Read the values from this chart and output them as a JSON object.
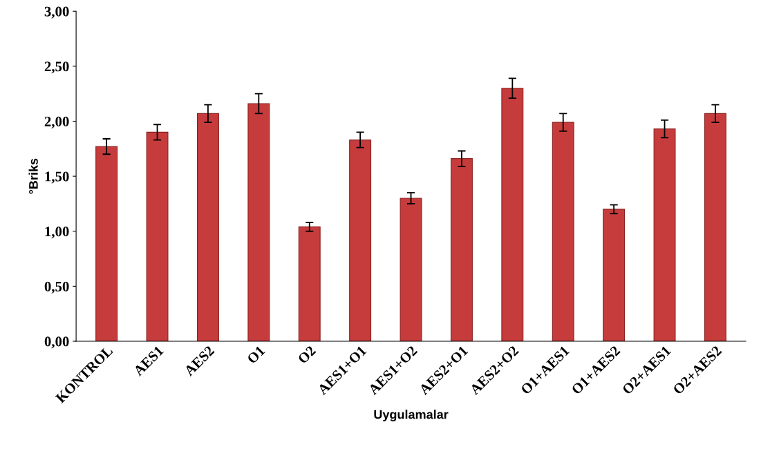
{
  "chart_data": {
    "type": "bar",
    "xlabel": "Uygulamalar",
    "ylabel": "°Briks",
    "categories": [
      "KONTROL",
      "AES1",
      "AES2",
      "O1",
      "O2",
      "AES1+O1",
      "AES1+O2",
      "AES2+O1",
      "AES2+O2",
      "O1+AES1",
      "O1+AES2",
      "O2+AES1",
      "O2+AES2"
    ],
    "values": [
      1.77,
      1.9,
      2.07,
      2.16,
      1.04,
      1.83,
      1.3,
      1.66,
      2.3,
      1.99,
      1.2,
      1.93,
      2.07
    ],
    "errors": [
      0.07,
      0.07,
      0.08,
      0.09,
      0.04,
      0.07,
      0.05,
      0.07,
      0.09,
      0.08,
      0.04,
      0.08,
      0.08
    ],
    "color": "#c63c3c",
    "ylim": [
      0,
      3
    ],
    "yticks": [
      {
        "value": 0,
        "label": "0,00"
      },
      {
        "value": 0.5,
        "label": "0,50"
      },
      {
        "value": 1,
        "label": "1,00"
      },
      {
        "value": 1.5,
        "label": "1,50"
      },
      {
        "value": 2,
        "label": "2,00"
      },
      {
        "value": 2.5,
        "label": "2,50"
      },
      {
        "value": 3,
        "label": "3,00"
      }
    ],
    "grid": false,
    "legend": false
  }
}
